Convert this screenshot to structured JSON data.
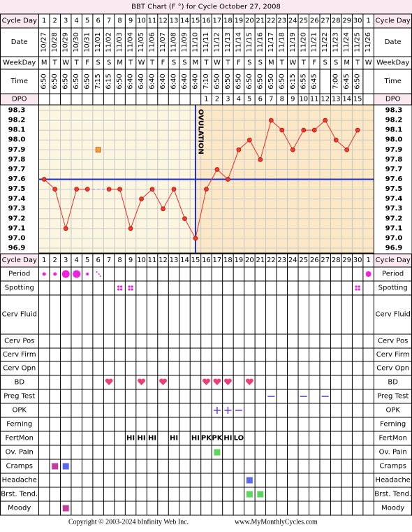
{
  "title": "BBT Chart (F °) for Cycle October 27, 2008",
  "top_labels": [
    "Cycle Day",
    "Date",
    "WeekDay",
    "Time",
    "DPO"
  ],
  "bottom_labels": [
    "Cycle Day",
    "Period",
    "Spotting",
    "Cerv Fluid",
    "Cerv Pos",
    "Cerv Firm",
    "Cerv Opn",
    "BD",
    "Preg Test",
    "OPK",
    "Ferning",
    "FertMon",
    "Ov. Pain",
    "Cramps",
    "Headache",
    "Brst. Tend.",
    "Moody"
  ],
  "cycle_days": [
    1,
    2,
    3,
    4,
    5,
    6,
    7,
    8,
    9,
    10,
    11,
    12,
    13,
    14,
    15,
    16,
    17,
    18,
    19,
    20,
    21,
    22,
    23,
    24,
    25,
    26,
    27,
    28,
    29,
    30,
    1
  ],
  "dates": [
    "10/27",
    "10/28",
    "10/29",
    "10/30",
    "10/31",
    "11/01",
    "11/02",
    "11/03",
    "11/04",
    "11/05",
    "11/06",
    "11/07",
    "11/08",
    "11/09",
    "11/10",
    "11/11",
    "11/12",
    "11/13",
    "11/14",
    "11/15",
    "11/16",
    "11/17",
    "11/18",
    "11/19",
    "11/20",
    "11/21",
    "11/22",
    "11/23",
    "11/24",
    "11/25",
    "11/26"
  ],
  "weekdays": [
    "M",
    "T",
    "W",
    "T",
    "F",
    "S",
    "S",
    "M",
    "T",
    "W",
    "T",
    "F",
    "S",
    "S",
    "M",
    "T",
    "W",
    "T",
    "F",
    "S",
    "S",
    "M",
    "T",
    "W",
    "T",
    "F",
    "S",
    "S",
    "M",
    "T",
    "W"
  ],
  "times": [
    "6:50",
    "6:50",
    "6:50",
    "6:50",
    "6:50",
    "7:15",
    "6:15",
    "6:50",
    "6:40",
    "6:40",
    "6:40",
    "6:40",
    "6:40",
    "6:40",
    "6:40",
    "7:10",
    "6:50",
    "6:50",
    "6:50",
    "6:50",
    "6:50",
    "6:50",
    "6:50",
    "6:15",
    "6:55",
    "6:45",
    null,
    "7:00",
    "6:45",
    "6:50",
    null
  ],
  "dpo": [
    null,
    null,
    null,
    null,
    null,
    null,
    null,
    null,
    null,
    null,
    null,
    null,
    null,
    null,
    null,
    1,
    2,
    3,
    4,
    5,
    6,
    7,
    8,
    9,
    10,
    11,
    12,
    13,
    14,
    15,
    null
  ],
  "temp_ticks": [
    98.3,
    98.2,
    98.1,
    {
      "value": 98,
      "label": "98.0"
    },
    97.9,
    97.8,
    97.7,
    97.6,
    97.5,
    97.4,
    97.3,
    97.2,
    97.1,
    {
      "value": 97,
      "label": "97.0"
    },
    96.9
  ],
  "temperatures": [
    97.6,
    97.5,
    97.1,
    97.5,
    97.5,
    null,
    97.5,
    97.5,
    97.1,
    97.4,
    97.5,
    97.3,
    97.5,
    97.2,
    97.0,
    97.5,
    97.7,
    97.6,
    97.9,
    98.0,
    97.8,
    98.2,
    98.1,
    97.9,
    98.1,
    98.1,
    98.2,
    98.0,
    97.9,
    98.1,
    null
  ],
  "discarded_temperatures": [
    null,
    null,
    null,
    null,
    null,
    97.9,
    null,
    null,
    null,
    null,
    null,
    null,
    null,
    null,
    null,
    null,
    null,
    null,
    null,
    null,
    null,
    null,
    null,
    null,
    null,
    null,
    null,
    null,
    null,
    null,
    null
  ],
  "coverline": 97.6,
  "ovulation_day": 15,
  "ovulation_label": "OVULATION",
  "fertmon": [
    null,
    null,
    null,
    null,
    null,
    null,
    null,
    null,
    "HI",
    "HI",
    "HI",
    null,
    "HI",
    null,
    "HI",
    "PK",
    "PK",
    "HI",
    "LO",
    null,
    null,
    null,
    null,
    null,
    null,
    null,
    null,
    null,
    null,
    null,
    null
  ],
  "copyright": "Copyright © 2003-2024 bInfinity Web Inc.",
  "site": "www.MyMonthlyCycles.com"
}
